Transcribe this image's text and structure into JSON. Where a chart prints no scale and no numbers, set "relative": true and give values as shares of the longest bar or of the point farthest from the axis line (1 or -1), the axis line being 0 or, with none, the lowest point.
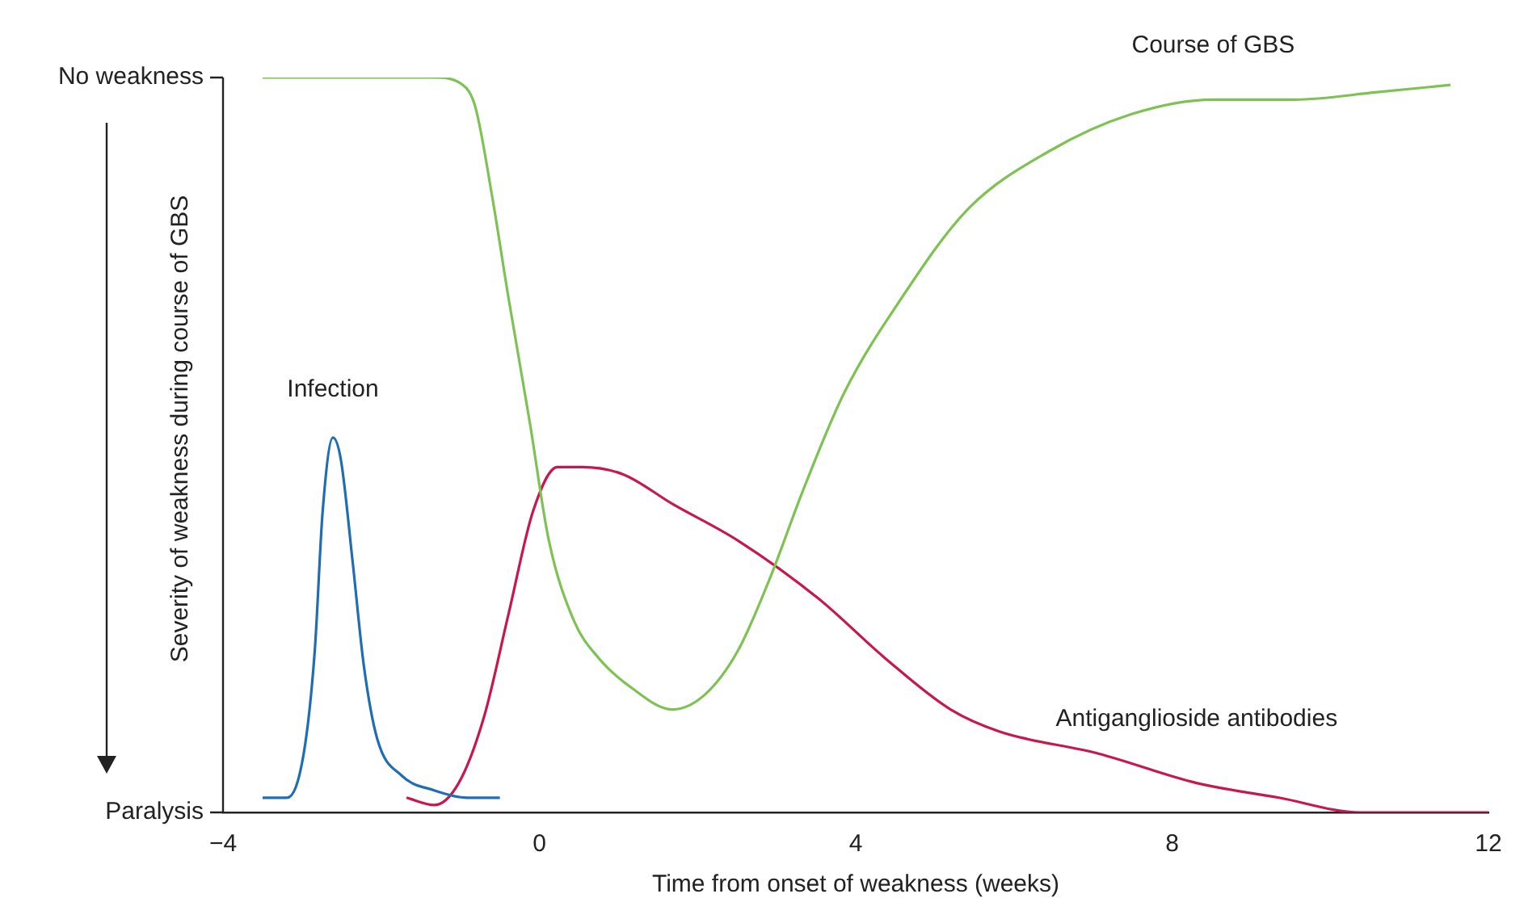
{
  "chart_data": {
    "type": "line",
    "relative": true,
    "xlabel": "Time from onset of weakness (weeks)",
    "ylabel": "Severity of weakness during course of GBS",
    "xlim": [
      -4,
      12
    ],
    "xticks": [
      -4,
      0,
      4,
      8,
      12
    ],
    "grid": false,
    "legend": false,
    "marker": "none",
    "line_style": "solid",
    "annotations": [
      "No weakness",
      "Paralysis"
    ],
    "series": [
      {
        "name": "Course of GBS",
        "color": "#7dc253",
        "x": [
          -3.5,
          -2.26,
          -1.33,
          -0.97,
          -0.81,
          -0.6,
          -0.39,
          -0.12,
          0.12,
          0.44,
          0.75,
          1.16,
          1.68,
          2.09,
          2.51,
          2.92,
          3.34,
          3.85,
          4.58,
          5.41,
          6.45,
          7.48,
          8.52,
          9.55,
          10.59,
          11.52
        ],
        "values": [
          1.0,
          1.0,
          1.0,
          0.99,
          0.96,
          0.84,
          0.7,
          0.53,
          0.37,
          0.26,
          0.21,
          0.17,
          0.14,
          0.16,
          0.22,
          0.32,
          0.44,
          0.57,
          0.7,
          0.82,
          0.9,
          0.95,
          0.97,
          0.97,
          0.98,
          0.99
        ]
      },
      {
        "name": "Infection",
        "color": "#1f6db5",
        "x": [
          -3.5,
          -3.19,
          -2.98,
          -2.84,
          -2.74,
          -2.61,
          -2.51,
          -2.36,
          -2.22,
          -2.05,
          -1.74,
          -1.33,
          -0.91,
          -0.5
        ],
        "values": [
          0.02,
          0.02,
          0.08,
          0.22,
          0.41,
          0.51,
          0.48,
          0.34,
          0.2,
          0.1,
          0.05,
          0.03,
          0.02,
          0.02
        ]
      },
      {
        "name": "Antiganglioside antibodies",
        "color": "#c8174e",
        "x": [
          -1.68,
          -1.33,
          -1.02,
          -0.7,
          -0.39,
          -0.08,
          0.23,
          0.54,
          1.06,
          1.68,
          2.51,
          3.54,
          4.37,
          5.2,
          5.82,
          7.07,
          8.31,
          9.35,
          10.38,
          12
        ],
        "values": [
          0.02,
          0.01,
          0.04,
          0.13,
          0.27,
          0.41,
          0.47,
          0.47,
          0.46,
          0.42,
          0.37,
          0.29,
          0.21,
          0.14,
          0.11,
          0.08,
          0.04,
          0.02,
          0.0,
          0.0
        ]
      }
    ]
  }
}
